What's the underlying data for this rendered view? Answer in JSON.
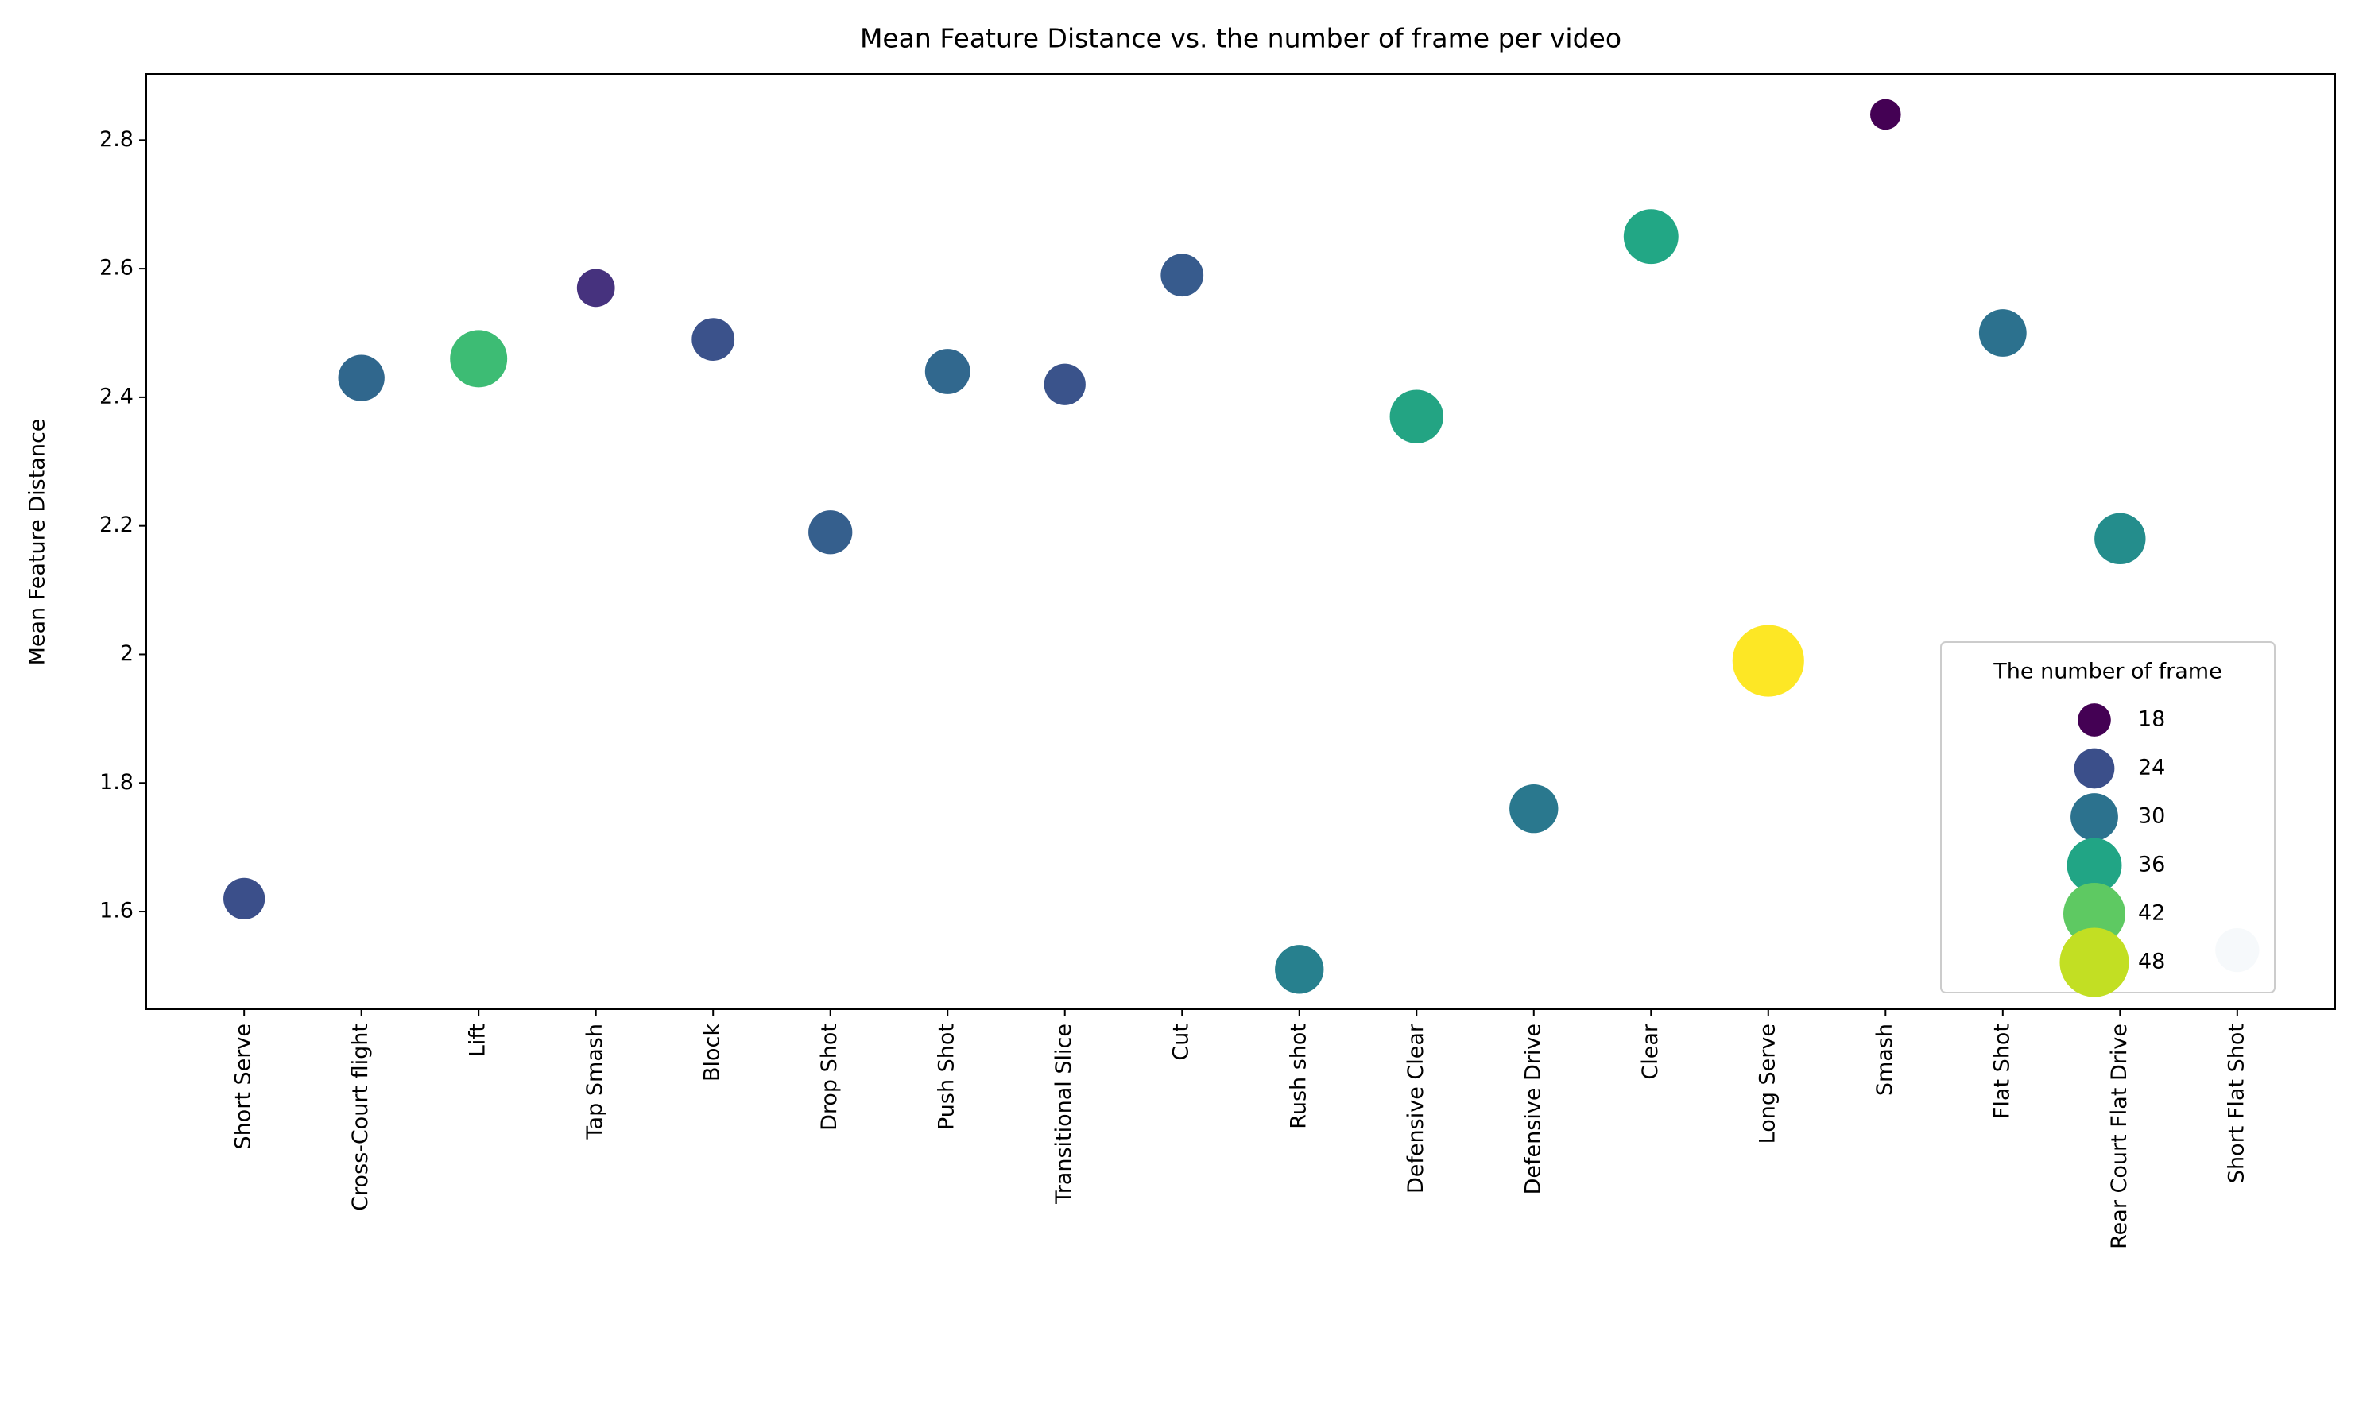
{
  "chart_data": {
    "type": "bubble",
    "title": "Mean Feature Distance vs. the number of frame per video",
    "ylabel": "Mean Feature Distance",
    "categories": [
      "Short Serve",
      "Cross-Court flight",
      "Lift",
      "Tap Smash",
      "Block",
      "Drop Shot",
      "Push Shot",
      "Transitional Slice",
      "Cut",
      "Rush shot",
      "Defensive Clear",
      "Defensive Drive",
      "Clear",
      "Long Serve",
      "Smash",
      "Flat Shot",
      "Rear Court Flat Drive",
      "Short Flat Shot"
    ],
    "values": [
      1.62,
      2.43,
      2.46,
      2.57,
      2.49,
      2.19,
      2.44,
      2.42,
      2.59,
      1.51,
      2.37,
      1.76,
      2.65,
      1.99,
      2.84,
      2.5,
      2.18,
      1.54
    ],
    "sizes": [
      25,
      29,
      38,
      22,
      26,
      27,
      28,
      25,
      26,
      31,
      35,
      31,
      36,
      50,
      16,
      30,
      33,
      27
    ],
    "colors": [
      "#3b4f8a",
      "#30678d",
      "#3dbc74",
      "#46327e",
      "#3b528b",
      "#355f8d",
      "#31688e",
      "#3a538b",
      "#375b8d",
      "#27808e",
      "#23a483",
      "#2a788e",
      "#22a785",
      "#fde725",
      "#440154",
      "#2c718e",
      "#248d8c",
      "#d3dfe9"
    ],
    "ylim": [
      1.448,
      2.903
    ],
    "yticks": [
      1.6,
      1.8,
      2.0,
      2.2,
      2.4,
      2.6,
      2.8
    ],
    "legend": {
      "title": "The number of frame",
      "loc": "lower right",
      "entries": [
        18,
        24,
        30,
        36,
        42,
        48
      ],
      "colors": [
        "#440154",
        "#3b4f8a",
        "#2c728e",
        "#21a585",
        "#5ec962",
        "#c2df23"
      ]
    }
  }
}
